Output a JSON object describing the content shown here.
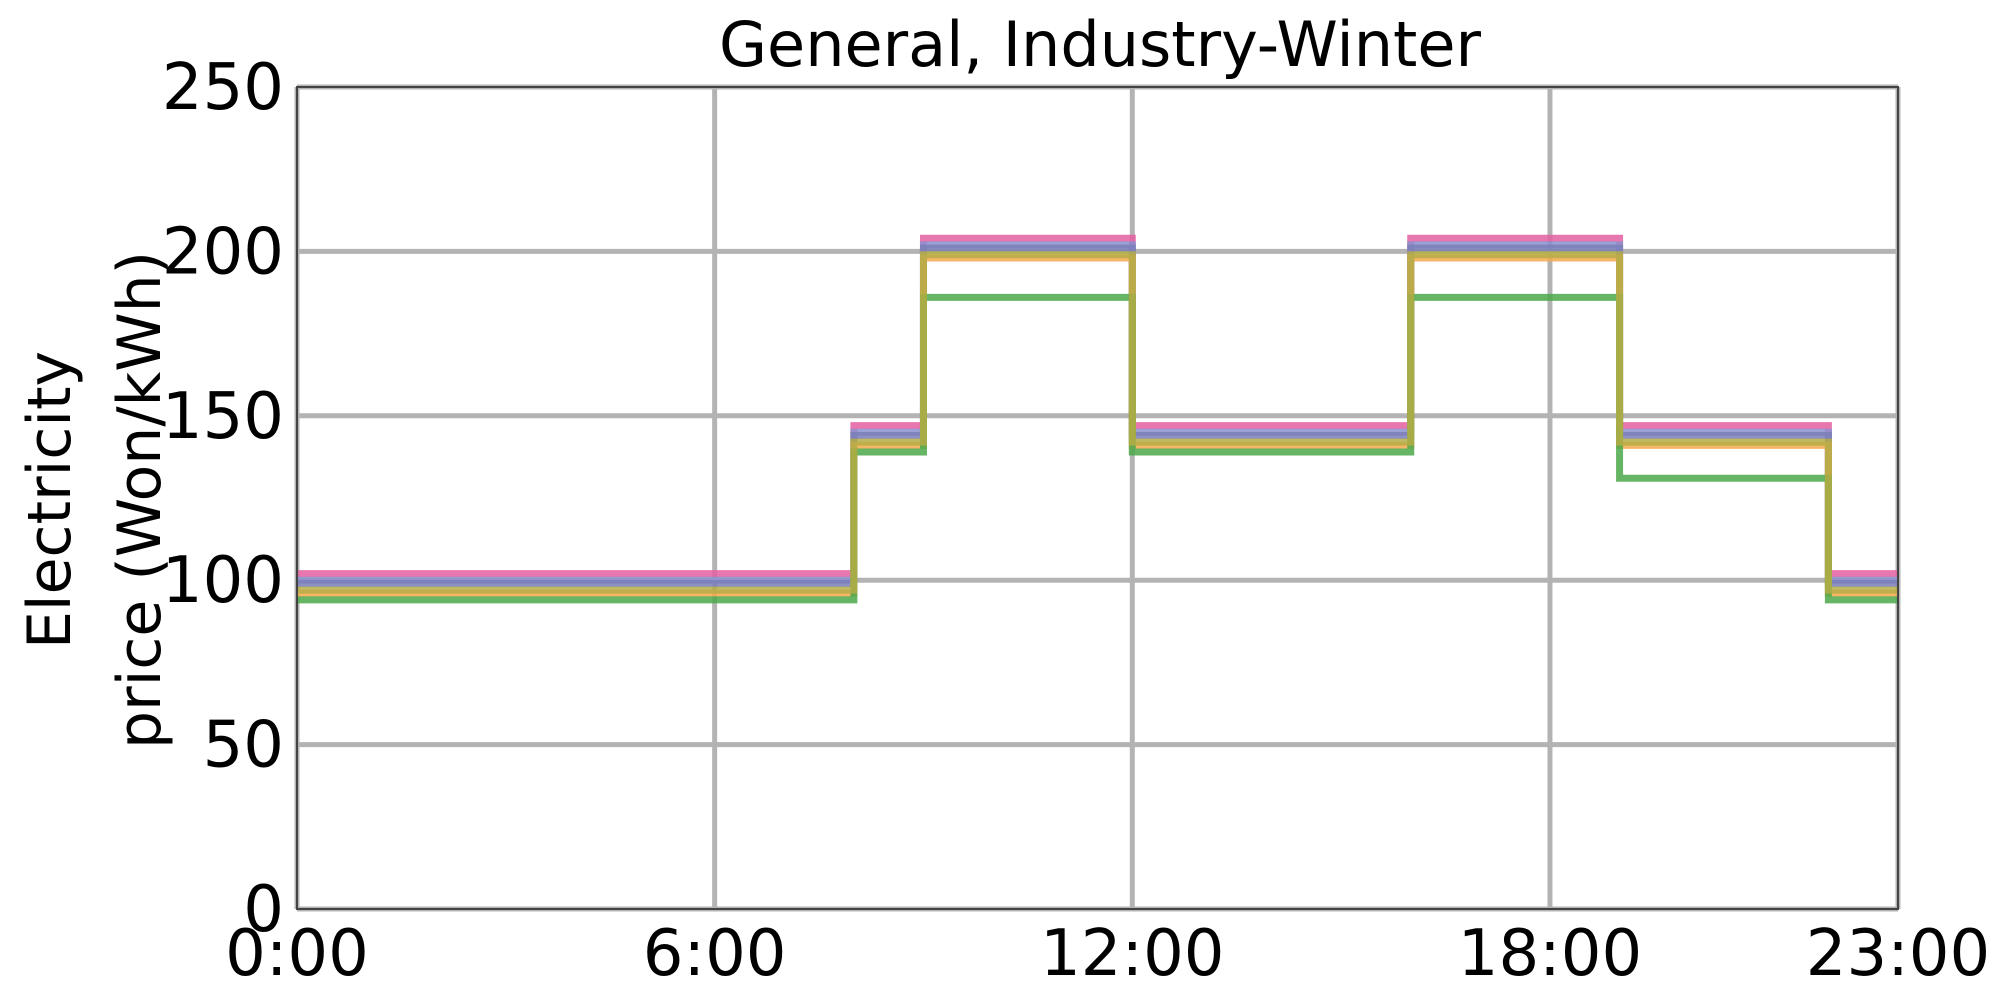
{
  "chart_data": {
    "type": "line",
    "step": "post",
    "title": "General, Industry-Winter",
    "xlabel": "",
    "ylabel_lines": [
      "Electricity",
      "price (Won/kWh)"
    ],
    "xlim": [
      0,
      23
    ],
    "ylim": [
      0,
      250
    ],
    "xticks": [
      {
        "value": 0,
        "label": "0:00"
      },
      {
        "value": 6,
        "label": "6:00"
      },
      {
        "value": 12,
        "label": "12:00"
      },
      {
        "value": 18,
        "label": "18:00"
      },
      {
        "value": 23,
        "label": "23:00"
      }
    ],
    "yticks": [
      {
        "value": 0,
        "label": "0"
      },
      {
        "value": 50,
        "label": "50"
      },
      {
        "value": 100,
        "label": "100"
      },
      {
        "value": 150,
        "label": "150"
      },
      {
        "value": 200,
        "label": "200"
      },
      {
        "value": 250,
        "label": "250"
      }
    ],
    "grid": true,
    "legend": "none",
    "colors": {
      "grid": "#b3b3b3",
      "frame": "#444444"
    },
    "x": [
      0,
      8,
      9,
      12,
      16,
      19,
      22,
      23
    ],
    "series": [
      {
        "color": "#e35fa0",
        "values": [
          102,
          147,
          204,
          147,
          204,
          147,
          102,
          102
        ]
      },
      {
        "color": "#8a8fd0",
        "values": [
          100,
          145,
          202,
          145,
          202,
          145,
          100,
          100
        ]
      },
      {
        "color": "#7a7fb8",
        "values": [
          99,
          144,
          201,
          144,
          201,
          144,
          99,
          99
        ]
      },
      {
        "color": "#f5a94e",
        "values": [
          96,
          141,
          198,
          141,
          198,
          141,
          96,
          96
        ]
      },
      {
        "color": "#4aa84a",
        "values": [
          94,
          139,
          186,
          139,
          186,
          131,
          94,
          94
        ]
      },
      {
        "color": "#b5ad45",
        "values": [
          97,
          142,
          199,
          142,
          199,
          142,
          97,
          97
        ]
      }
    ]
  }
}
